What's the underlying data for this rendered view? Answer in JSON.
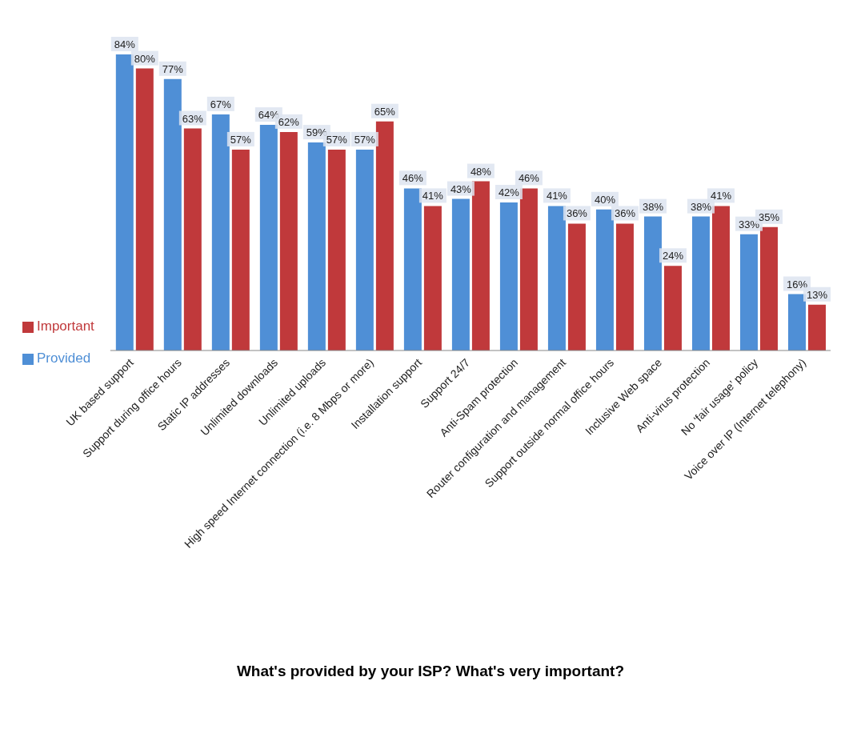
{
  "chart_data": {
    "type": "bar",
    "title": "What's provided by your ISP?  What's very important?",
    "categories": [
      "UK based support",
      "Support during office hours",
      "Static IP addresses",
      "Unlimited downloads",
      "Unlimited uploads",
      "High speed Internet connection (i.e. 8 Mbps or more)",
      "Installation support",
      "Support 24/7",
      "Anti-Spam protection",
      "Router configuration and management",
      "Support outside normal office hours",
      "Inclusive Web space",
      "Anti-virus protection",
      "No ‘fair usage’ policy",
      "Voice over IP (Internet telephony)"
    ],
    "series": [
      {
        "name": "Provided",
        "color": "#4f8fd6",
        "values": [
          84,
          77,
          67,
          64,
          59,
          57,
          46,
          43,
          42,
          41,
          40,
          38,
          38,
          33,
          16
        ],
        "value_labels": [
          "84%",
          "77%",
          "67%",
          "64%",
          "59%",
          "57%",
          "46%",
          "43%",
          "42%",
          "41%",
          "40%",
          "38%",
          "38%",
          "33%",
          "16%"
        ]
      },
      {
        "name": "Important",
        "color": "#c0393b",
        "values": [
          80,
          63,
          57,
          62,
          57,
          65,
          41,
          48,
          46,
          36,
          36,
          24,
          41,
          35,
          13
        ],
        "value_labels": [
          "80%",
          "63%",
          "57%",
          "62%",
          "57%",
          "65%",
          "41%",
          "48%",
          "46%",
          "36%",
          "36%",
          "24%",
          "41%",
          "35%",
          "13%"
        ]
      }
    ],
    "legend": "left",
    "grid": false
  }
}
